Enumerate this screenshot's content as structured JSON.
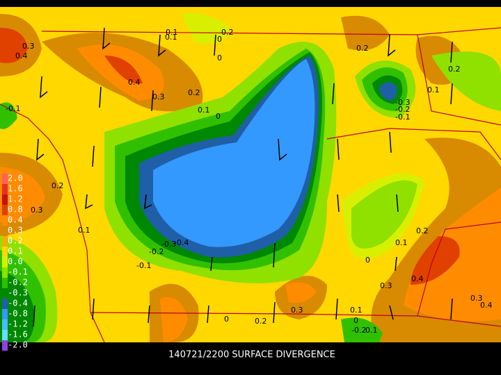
{
  "map": {
    "title": "140721/2200 SURFACE DIVERGENCE",
    "legend": [
      {
        "label": "2.0",
        "color": "#ff6060"
      },
      {
        "label": "1.6",
        "color": "#e83020"
      },
      {
        "label": "1.2",
        "color": "#c81010"
      },
      {
        "label": "0.8",
        "color": "#e04000"
      },
      {
        "label": "0.4",
        "color": "#ff8c00"
      },
      {
        "label": "0.3",
        "color": "#d88a00"
      },
      {
        "label": "0.2",
        "color": "#f0b000"
      },
      {
        "label": "0.1",
        "color": "#ffd800"
      },
      {
        "label": "0.0",
        "color": "#d8f000"
      },
      {
        "label": "-0.1",
        "color": "#90e000"
      },
      {
        "label": "-0.2",
        "color": "#30c000"
      },
      {
        "label": "-0.3",
        "color": "#008800"
      },
      {
        "label": "-0.4",
        "color": "#1f5fa8"
      },
      {
        "label": "-0.8",
        "color": "#3399ff"
      },
      {
        "label": "-1.2",
        "color": "#40c0ff"
      },
      {
        "label": "-1.6",
        "color": "#60e0ff"
      },
      {
        "label": "-2.0",
        "color": "#9040e0"
      }
    ],
    "contour_labels": [
      "0.3",
      "0.4",
      "0.1",
      "0.2",
      "0",
      "0.4",
      "0.3",
      "0.2",
      "0.1",
      "0",
      "0",
      "0.1",
      "0.2",
      "0.2",
      "0.1",
      "-0.3",
      "-0.2",
      "-0.1",
      "0.2",
      "0.3",
      "0.1",
      "-0.3",
      "-0.4",
      "-0.2",
      "-0.1",
      "0.2",
      "0.1",
      "0",
      "0.3",
      "0.4",
      "0.3",
      "0.4",
      "0.3",
      "0.1",
      "0",
      "0.2",
      "0",
      "-0.2",
      "0.1",
      "-0.1"
    ]
  }
}
